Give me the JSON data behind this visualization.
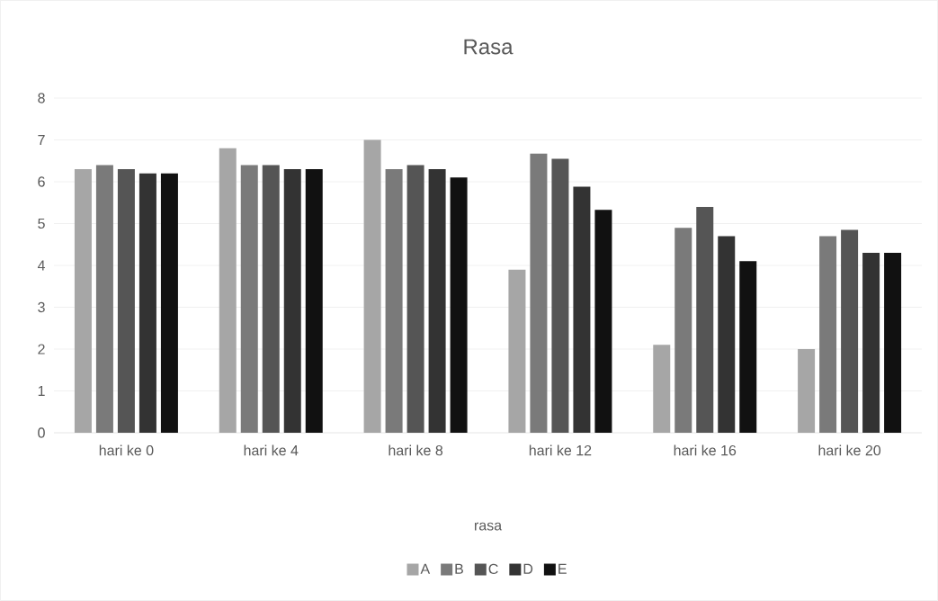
{
  "chart_data": {
    "type": "bar",
    "title": "Rasa",
    "xlabel": "rasa",
    "categories": [
      "hari ke 0",
      "hari ke 4",
      "hari ke 8",
      "hari ke 12",
      "hari ke 16",
      "hari ke 20"
    ],
    "series": [
      {
        "name": "A",
        "color": "#a6a6a6",
        "values": [
          6.3,
          6.8,
          7.0,
          3.9,
          2.1,
          2.0
        ]
      },
      {
        "name": "B",
        "color": "#7a7a7a",
        "values": [
          6.4,
          6.4,
          6.3,
          6.67,
          4.9,
          4.7
        ]
      },
      {
        "name": "C",
        "color": "#555555",
        "values": [
          6.3,
          6.4,
          6.4,
          6.55,
          5.4,
          4.85
        ]
      },
      {
        "name": "D",
        "color": "#333333",
        "values": [
          6.2,
          6.3,
          6.3,
          5.88,
          4.7,
          4.3
        ]
      },
      {
        "name": "E",
        "color": "#111111",
        "values": [
          6.2,
          6.3,
          6.1,
          5.33,
          4.1,
          4.3
        ]
      }
    ],
    "ylim": [
      0,
      8
    ],
    "yticks": [
      0,
      1,
      2,
      3,
      4,
      5,
      6,
      7,
      8
    ],
    "grid": "y",
    "legend": "bottom"
  }
}
